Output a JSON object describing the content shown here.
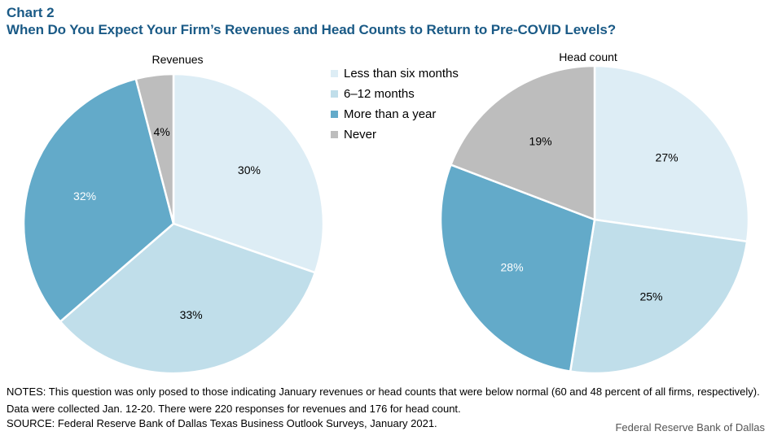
{
  "header": {
    "chart_number": "Chart 2",
    "title": "When Do You Expect Your Firm’s Revenues and Head Counts to Return to Pre-COVID Levels?"
  },
  "legend": [
    {
      "label": "Less than six months",
      "color": "#ddedf5"
    },
    {
      "label": "6–12 months",
      "color": "#c0deea"
    },
    {
      "label": "More than a year",
      "color": "#63aac9"
    },
    {
      "label": "Never",
      "color": "#bdbdbd"
    }
  ],
  "chart_data": [
    {
      "type": "pie",
      "title": "Revenues",
      "categories": [
        "Less than six months",
        "6–12 months",
        "More than a year",
        "Never"
      ],
      "values": [
        30,
        33,
        32,
        4
      ],
      "labels": [
        "30%",
        "33%",
        "32%",
        "4%"
      ],
      "label_colors": [
        "#000000",
        "#000000",
        "#ffffff",
        "#000000"
      ]
    },
    {
      "type": "pie",
      "title": "Head count",
      "categories": [
        "Less than six months",
        "6–12 months",
        "More than a year",
        "Never"
      ],
      "values": [
        27,
        25,
        28,
        19
      ],
      "labels": [
        "27%",
        "25%",
        "28%",
        "19%"
      ],
      "label_colors": [
        "#000000",
        "#000000",
        "#ffffff",
        "#000000"
      ]
    }
  ],
  "notes": "NOTES: This question was only posed to those indicating January revenues or head counts that were below normal (60 and 48 percent of all firms, respectively). Data were collected Jan. 12-20. There were 220 responses for revenues and 176 for head count.",
  "source": "SOURCE: Federal Reserve Bank of Dallas Texas Business Outlook Surveys, January 2021.",
  "credit": "Federal Reserve Bank of Dallas"
}
